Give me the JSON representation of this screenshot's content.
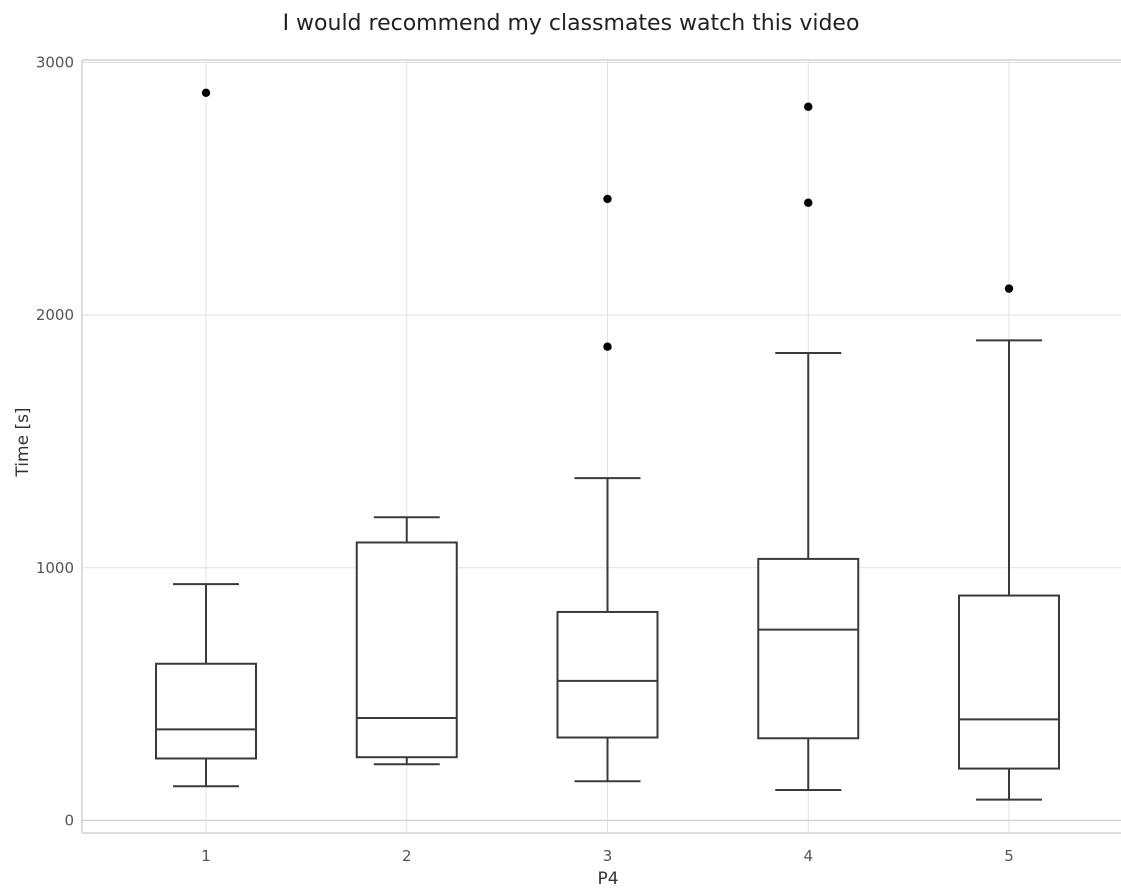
{
  "chart_data": {
    "type": "box",
    "title": "I would recommend my classmates watch this video",
    "xlabel": "P4",
    "ylabel": "Time [s]",
    "categories": [
      "1",
      "2",
      "3",
      "4",
      "5"
    ],
    "ylim": [
      -50,
      3010
    ],
    "yticks": [
      0,
      1000,
      2000,
      3000
    ],
    "yticklabels": [
      "0",
      "1000",
      "2000",
      "3000"
    ],
    "grid": true,
    "boxes": [
      {
        "category": "1",
        "whisker_low": 135,
        "q1": 245,
        "median": 360,
        "q3": 620,
        "whisker_high": 935,
        "outliers": [
          2880
        ]
      },
      {
        "category": "2",
        "whisker_low": 222,
        "q1": 250,
        "median": 405,
        "q3": 1100,
        "whisker_high": 1200,
        "outliers": []
      },
      {
        "category": "3",
        "whisker_low": 155,
        "q1": 328,
        "median": 552,
        "q3": 825,
        "whisker_high": 1355,
        "outliers": [
          1875,
          2460
        ]
      },
      {
        "category": "4",
        "whisker_low": 120,
        "q1": 325,
        "median": 755,
        "q3": 1035,
        "whisker_high": 1850,
        "outliers": [
          2445,
          2825
        ]
      },
      {
        "category": "5",
        "whisker_low": 82,
        "q1": 205,
        "median": 400,
        "q3": 890,
        "whisker_high": 1900,
        "outliers": [
          2105
        ]
      }
    ],
    "colors": {
      "box_line": "#3a3a3a",
      "box_fill": "#ffffff",
      "outlier": "#000000",
      "grid": "#e1e1e1",
      "axis": "#d4d4d4",
      "tick_text": "#555555",
      "title_text": "#222222"
    }
  }
}
